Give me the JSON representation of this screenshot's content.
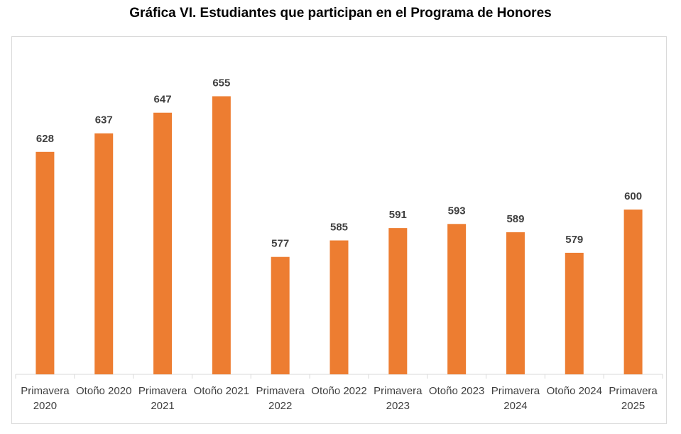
{
  "chart_data": {
    "type": "bar",
    "title": "Gráfica VI. Estudiantes que participan en el Programa de Honores",
    "categories": [
      [
        "Primavera",
        "2020"
      ],
      [
        "Otoño 2020"
      ],
      [
        "Primavera",
        "2021"
      ],
      [
        "Otoño 2021"
      ],
      [
        "Primavera",
        "2022"
      ],
      [
        "Otoño 2022"
      ],
      [
        "Primavera",
        "2023"
      ],
      [
        "Otoño 2023"
      ],
      [
        "Primavera",
        "2024"
      ],
      [
        "Otoño 2024"
      ],
      [
        "Primavera",
        "2025"
      ]
    ],
    "values": [
      628,
      637,
      647,
      655,
      577,
      585,
      591,
      593,
      589,
      579,
      600
    ],
    "xlabel": "",
    "ylabel": "",
    "ylim": [
      520,
      680
    ],
    "y_axis_visible": false,
    "grid": false,
    "data_labels": true,
    "bar_color": "#ED7D31"
  }
}
